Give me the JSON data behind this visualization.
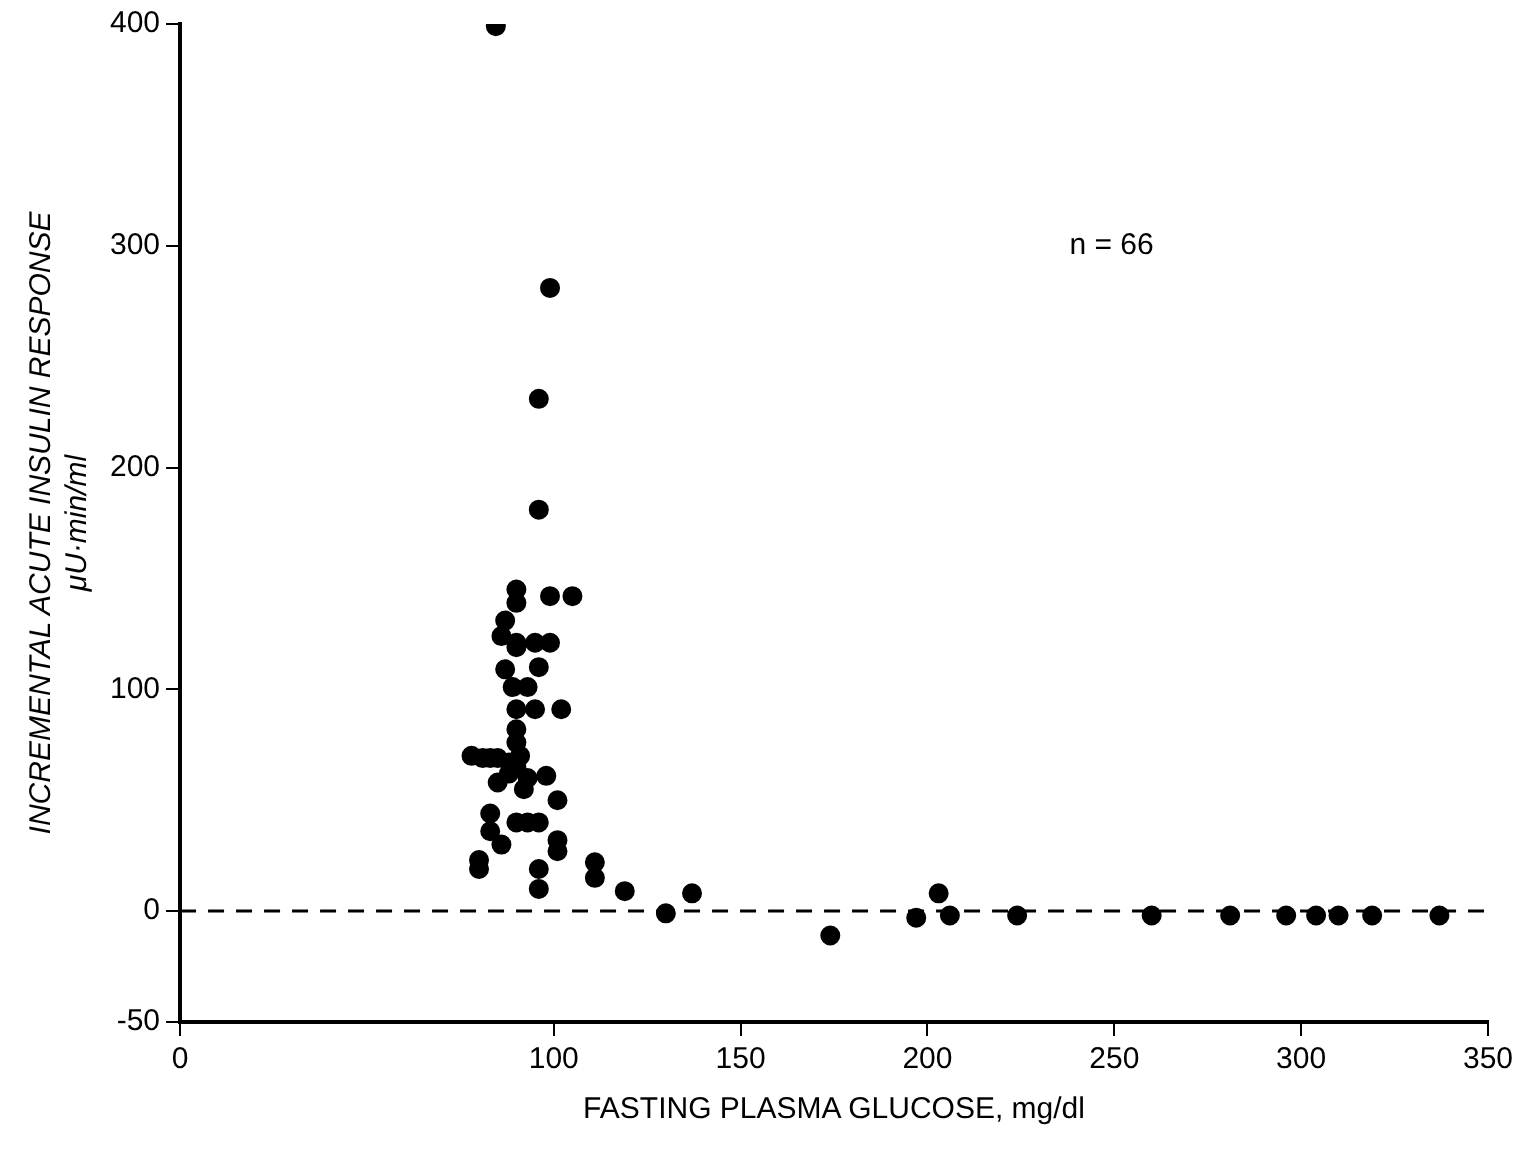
{
  "chart_data": {
    "type": "scatter",
    "xlabel": "FASTING PLASMA GLUCOSE, mg/dl",
    "ylabel": "INCREMENTAL ACUTE INSULIN RESPONSE\nμU·min/ml",
    "annotations": [
      "n = 66"
    ],
    "xlim": [
      0,
      350
    ],
    "xticks": [
      0,
      100,
      150,
      200,
      250,
      300,
      350
    ],
    "ylim": [
      -50,
      400
    ],
    "yticks": [
      -50,
      0,
      100,
      200,
      300,
      400
    ],
    "grid": false,
    "legend": false,
    "marker": "circle",
    "ref_lines": [
      {
        "axis": "y",
        "value": 0,
        "line_style": "dashed",
        "color": "#000000"
      }
    ],
    "series": [
      {
        "color": "#000000",
        "x": [
          84.5,
          99,
          96,
          96,
          90,
          90,
          99,
          105,
          87,
          86,
          90,
          90,
          95,
          99,
          87,
          96,
          89,
          93,
          90,
          95,
          102,
          90,
          90,
          78,
          81,
          83,
          85,
          88,
          90,
          93,
          88,
          91,
          98,
          101,
          83,
          83,
          90,
          93,
          96,
          86,
          101,
          101,
          80,
          80,
          96,
          96,
          111,
          111,
          119,
          130,
          137,
          174,
          197,
          203,
          206,
          224,
          260,
          281,
          296,
          304,
          310,
          319,
          337,
          85,
          92
        ],
        "values": [
          399,
          281,
          231,
          181,
          145,
          139,
          142,
          142,
          131,
          124,
          121,
          119,
          121,
          121,
          109,
          110,
          101,
          101,
          91,
          91,
          91,
          82,
          76,
          70,
          69,
          69,
          69,
          67,
          65,
          60,
          62,
          70,
          61,
          50,
          44,
          36,
          40,
          40,
          40,
          30,
          32,
          27,
          23,
          19,
          19,
          10,
          22,
          15,
          9,
          -1,
          8,
          -11,
          -3,
          8,
          -2,
          -2,
          -2,
          -2,
          -2,
          -2,
          -2,
          -2,
          -2,
          58,
          55
        ]
      }
    ]
  }
}
